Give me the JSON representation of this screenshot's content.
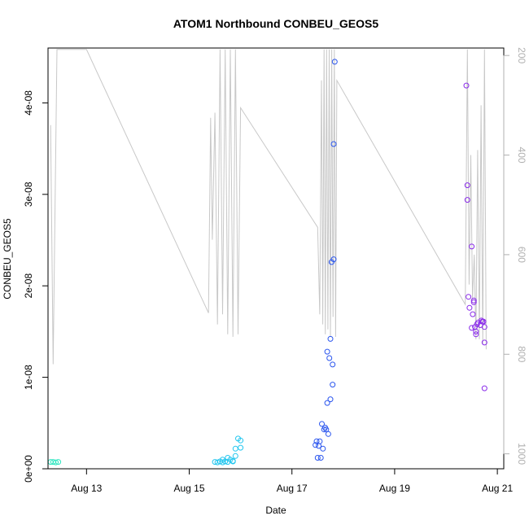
{
  "chart_data": {
    "type": "scatter",
    "title": "ATOM1 Northbound CONBEU_GEOS5",
    "xlabel": "Date",
    "ylabel": "CONBEU_GEOS5",
    "x_unit": "days",
    "x_range": [
      "2016-08-12T06:00",
      "2016-08-21T03:00"
    ],
    "ylim": [
      0,
      4.6e-08
    ],
    "y_ticks": [
      0,
      1e-08,
      2e-08,
      3e-08,
      4e-08
    ],
    "y_tick_labels": [
      "0e+00",
      "1e-08",
      "2e-08",
      "3e-08",
      "4e-08"
    ],
    "x_ticks": [
      "2016-08-13",
      "2016-08-15",
      "2016-08-17",
      "2016-08-19",
      "2016-08-21"
    ],
    "x_tick_labels": [
      "Aug 13",
      "Aug 15",
      "Aug 17",
      "Aug 19",
      "Aug 21"
    ],
    "y2_reversed": true,
    "y2_range": [
      1030,
      185
    ],
    "y2_ticks": [
      200,
      400,
      600,
      800,
      1000
    ],
    "y2_tick_labels": [
      "200",
      "400",
      "600",
      "800",
      "1000"
    ],
    "grid": false,
    "legend": "none",
    "series": [
      {
        "color": "#2ee6c0",
        "points": [
          [
            "2016-08-12T07:12",
            7.5e-10
          ],
          [
            "2016-08-12T08:24",
            7.5e-10
          ],
          [
            "2016-08-12T09:36",
            7e-10
          ],
          [
            "2016-08-12T10:48",
            7.5e-10
          ]
        ]
      },
      {
        "color": "#22c6ef",
        "points": [
          [
            "2016-08-15T12:00",
            7.5e-10
          ],
          [
            "2016-08-15T13:12",
            7e-10
          ],
          [
            "2016-08-15T14:24",
            8e-10
          ],
          [
            "2016-08-15T15:36",
            1e-09
          ],
          [
            "2016-08-15T16:48",
            8e-10
          ],
          [
            "2016-08-15T18:00",
            1.2e-09
          ],
          [
            "2016-08-15T19:12",
            1e-09
          ],
          [
            "2016-08-15T20:24",
            8.5e-10
          ],
          [
            "2016-08-15T21:36",
            1.4e-09
          ],
          [
            "2016-08-15T15:36",
            7e-10
          ],
          [
            "2016-08-15T18:00",
            7.5e-10
          ],
          [
            "2016-08-15T21:36",
            2.2e-09
          ],
          [
            "2016-08-15T22:48",
            3.3e-09
          ],
          [
            "2016-08-16T00:00",
            3.1e-09
          ],
          [
            "2016-08-16T00:00",
            2.3e-09
          ],
          [
            "2016-08-15T20:24",
            8e-10
          ]
        ]
      },
      {
        "color": "#2a55ee",
        "points": [
          [
            "2016-08-17T11:00",
            2.6e-09
          ],
          [
            "2016-08-17T11:30",
            3e-09
          ],
          [
            "2016-08-17T12:00",
            1.2e-09
          ],
          [
            "2016-08-17T12:30",
            2.5e-09
          ],
          [
            "2016-08-17T13:00",
            3e-09
          ],
          [
            "2016-08-17T13:30",
            1.2e-09
          ],
          [
            "2016-08-17T14:00",
            4.9e-09
          ],
          [
            "2016-08-17T14:30",
            2.2e-09
          ],
          [
            "2016-08-17T15:00",
            4.3e-09
          ],
          [
            "2016-08-17T15:30",
            4.5e-09
          ],
          [
            "2016-08-17T16:00",
            4.3e-09
          ],
          [
            "2016-08-17T16:30",
            7.2e-09
          ],
          [
            "2016-08-17T17:00",
            3.8e-09
          ],
          [
            "2016-08-17T16:30",
            1.28e-08
          ],
          [
            "2016-08-17T17:30",
            1.21e-08
          ],
          [
            "2016-08-17T18:00",
            7.6e-09
          ],
          [
            "2016-08-17T18:00",
            1.42e-08
          ],
          [
            "2016-08-17T19:00",
            1.14e-08
          ],
          [
            "2016-08-17T19:00",
            9.2e-09
          ],
          [
            "2016-08-17T18:30",
            2.26e-08
          ],
          [
            "2016-08-17T19:30",
            2.29e-08
          ],
          [
            "2016-08-17T19:30",
            3.55e-08
          ],
          [
            "2016-08-17T20:00",
            4.45e-08
          ]
        ]
      },
      {
        "color": "#8a2bea",
        "points": [
          [
            "2016-08-20T09:30",
            4.19e-08
          ],
          [
            "2016-08-20T10:00",
            3.1e-08
          ],
          [
            "2016-08-20T10:00",
            2.94e-08
          ],
          [
            "2016-08-20T10:30",
            1.88e-08
          ],
          [
            "2016-08-20T11:00",
            1.76e-08
          ],
          [
            "2016-08-20T12:00",
            2.43e-08
          ],
          [
            "2016-08-20T12:00",
            1.54e-08
          ],
          [
            "2016-08-20T12:30",
            1.69e-08
          ],
          [
            "2016-08-20T13:00",
            1.84e-08
          ],
          [
            "2016-08-20T13:00",
            1.82e-08
          ],
          [
            "2016-08-20T13:30",
            1.55e-08
          ],
          [
            "2016-08-20T14:00",
            1.5e-08
          ],
          [
            "2016-08-20T14:00",
            1.47e-08
          ],
          [
            "2016-08-20T14:30",
            1.58e-08
          ],
          [
            "2016-08-20T15:00",
            1.6e-08
          ],
          [
            "2016-08-20T16:00",
            1.57e-08
          ],
          [
            "2016-08-20T16:30",
            1.62e-08
          ],
          [
            "2016-08-20T17:30",
            1.61e-08
          ],
          [
            "2016-08-20T18:00",
            1.55e-08
          ],
          [
            "2016-08-20T18:00",
            1.38e-08
          ],
          [
            "2016-08-20T18:00",
            8.8e-09
          ],
          [
            "2016-08-20T17:00",
            1.61e-08
          ]
        ]
      }
    ],
    "secondary_line": {
      "color": "#c8c8c8",
      "axis": "y2",
      "points": [
        [
          "2016-08-12T07:12",
          340
        ],
        [
          "2016-08-12T08:24",
          820
        ],
        [
          "2016-08-12T10:12",
          188
        ],
        [
          "2016-08-13T00:00",
          188
        ],
        [
          "2016-08-15T09:00",
          717
        ],
        [
          "2016-08-15T10:00",
          325
        ],
        [
          "2016-08-15T10:48",
          570
        ],
        [
          "2016-08-15T12:00",
          315
        ],
        [
          "2016-08-15T13:12",
          740
        ],
        [
          "2016-08-15T14:24",
          188
        ],
        [
          "2016-08-15T15:36",
          720
        ],
        [
          "2016-08-15T16:48",
          188
        ],
        [
          "2016-08-15T18:00",
          760
        ],
        [
          "2016-08-15T19:12",
          188
        ],
        [
          "2016-08-15T20:24",
          765
        ],
        [
          "2016-08-15T21:36",
          188
        ],
        [
          "2016-08-15T22:48",
          760
        ],
        [
          "2016-08-16T00:00",
          305
        ],
        [
          "2016-08-17T12:00",
          545
        ],
        [
          "2016-08-17T13:00",
          720
        ],
        [
          "2016-08-17T13:48",
          250
        ],
        [
          "2016-08-17T14:24",
          740
        ],
        [
          "2016-08-17T15:00",
          188
        ],
        [
          "2016-08-17T15:36",
          760
        ],
        [
          "2016-08-17T16:12",
          188
        ],
        [
          "2016-08-17T16:48",
          750
        ],
        [
          "2016-08-17T17:24",
          188
        ],
        [
          "2016-08-17T18:00",
          765
        ],
        [
          "2016-08-17T18:36",
          188
        ],
        [
          "2016-08-17T19:12",
          725
        ],
        [
          "2016-08-17T19:48",
          188
        ],
        [
          "2016-08-17T20:24",
          765
        ],
        [
          "2016-08-17T21:00",
          250
        ],
        [
          "2016-08-20T09:00",
          700
        ],
        [
          "2016-08-20T10:00",
          188
        ],
        [
          "2016-08-20T10:48",
          660
        ],
        [
          "2016-08-20T11:36",
          400
        ],
        [
          "2016-08-20T12:24",
          690
        ],
        [
          "2016-08-20T13:12",
          600
        ],
        [
          "2016-08-20T14:00",
          770
        ],
        [
          "2016-08-20T14:48",
          390
        ],
        [
          "2016-08-20T15:36",
          770
        ],
        [
          "2016-08-20T16:24",
          300
        ],
        [
          "2016-08-20T17:12",
          780
        ],
        [
          "2016-08-20T18:00",
          188
        ],
        [
          "2016-08-20T18:48",
          790
        ]
      ]
    }
  }
}
